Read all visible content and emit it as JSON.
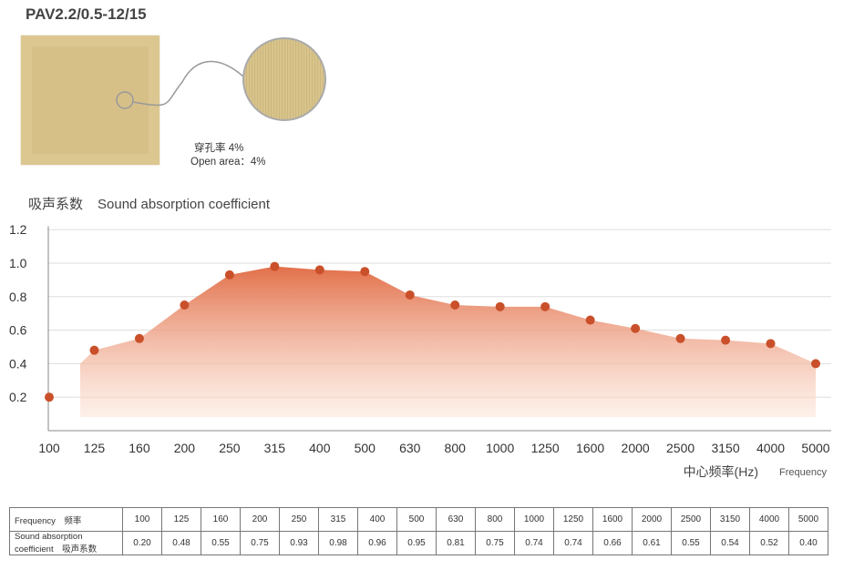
{
  "product": {
    "title": "PAV2.2/0.5-12/15",
    "open_area_cn": "穿孔率 4%",
    "open_area_en": "Open area：4%"
  },
  "colors": {
    "marker": "#c9502a",
    "fill_top": "#e2704a",
    "fill_bottom": "#fde8dc",
    "grid": "#ddd"
  },
  "chart_data": {
    "type": "area",
    "title_cn": "吸声系数",
    "title_en": "Sound absorption coefficient",
    "xlabel_cn": "中心频率(Hz)",
    "xlabel_en": "Frequency",
    "categories": [
      "100",
      "125",
      "160",
      "200",
      "250",
      "315",
      "400",
      "500",
      "630",
      "800",
      "1000",
      "1250",
      "1600",
      "2000",
      "2500",
      "3150",
      "4000",
      "5000"
    ],
    "values": [
      0.2,
      0.48,
      0.55,
      0.75,
      0.93,
      0.98,
      0.96,
      0.95,
      0.81,
      0.75,
      0.74,
      0.74,
      0.66,
      0.61,
      0.55,
      0.54,
      0.52,
      0.4
    ],
    "yticks": [
      "0.2",
      "0.4",
      "0.6",
      "0.8",
      "1.0",
      "1.2"
    ],
    "ylim": [
      0,
      1.2
    ],
    "grid": true
  },
  "table": {
    "row1_label": "Frequency　频率",
    "row2_label_en": "Sound absorption",
    "row2_label_2": "coefficient　吸声系数",
    "values": [
      "0.20",
      "0.48",
      "0.55",
      "0.75",
      "0.93",
      "0.98",
      "0.96",
      "0.95",
      "0.81",
      "0.75",
      "0.74",
      "0.74",
      "0.66",
      "0.61",
      "0.55",
      "0.54",
      "0.52",
      "0.40"
    ]
  }
}
